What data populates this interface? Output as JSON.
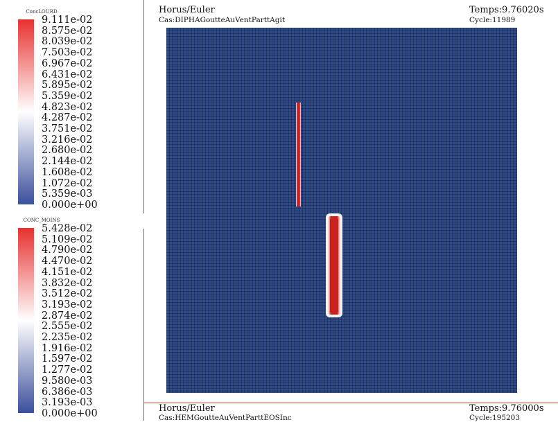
{
  "legend_top": {
    "title": "ConcLOURD",
    "ticks": [
      "9.111e-02",
      "8.575e-02",
      "8.039e-02",
      "7.503e-02",
      "6.967e-02",
      "6.431e-02",
      "5.895e-02",
      "5.359e-02",
      "4.823e-02",
      "4.287e-02",
      "3.751e-02",
      "3.216e-02",
      "2.680e-02",
      "2.144e-02",
      "1.608e-02",
      "1.072e-02",
      "5.359e-03",
      "0.000e+00"
    ],
    "color_high": "#e8312f",
    "color_mid": "#ffffff",
    "color_low": "#3b4f9c"
  },
  "legend_bottom": {
    "title": "CONC_MOINS",
    "ticks": [
      "5.428e-02",
      "5.109e-02",
      "4.790e-02",
      "4.470e-02",
      "4.151e-02",
      "3.832e-02",
      "3.512e-02",
      "3.193e-02",
      "2.874e-02",
      "2.555e-02",
      "2.235e-02",
      "1.916e-02",
      "1.597e-02",
      "1.277e-02",
      "9.580e-03",
      "6.386e-03",
      "3.193e-03",
      "0.000e+00"
    ],
    "color_high": "#e8312f",
    "color_mid": "#ffffff",
    "color_low": "#3b4f9c"
  },
  "header_top": {
    "app": "Horus/Euler",
    "case": "Cas:DIPHAGoutteAuVentParttAgit",
    "time": "Temps:9.76020s",
    "cycle": "Cycle:11989"
  },
  "header_bottom": {
    "app": "Horus/Euler",
    "case": "Cas:HEMGoutteAuVentParttEOSInc",
    "time": "Temps:9.76000s",
    "cycle": "Cycle:195203"
  },
  "plot": {
    "background_color": "#2d4a8c",
    "grid_color": "#0e1a33",
    "blob_color": "#c8231e"
  }
}
